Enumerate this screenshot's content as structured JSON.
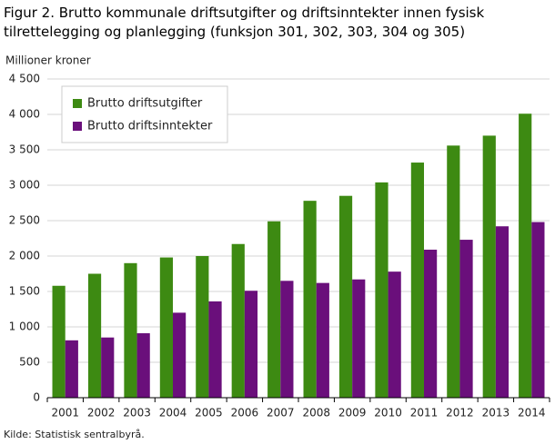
{
  "chart_data": {
    "type": "bar",
    "title": "Figur 2. Brutto kommunale driftsutgifter og driftsinntekter innen fysisk tilrettelegging og planlegging (funksjon 301, 302, 303, 304 og 305)",
    "y_label": "Millioner  kroner",
    "source": "Kilde: Statistisk sentralbyrå.",
    "categories": [
      "2001",
      "2002",
      "2003",
      "2004",
      "2005",
      "2006",
      "2007",
      "2008",
      "2009",
      "2010",
      "2011",
      "2012",
      "2013",
      "2014"
    ],
    "series": [
      {
        "name": "Brutto driftsutgifter",
        "color": "#3d8a12",
        "values": [
          1580,
          1750,
          1900,
          1980,
          2000,
          2170,
          2490,
          2780,
          2850,
          3040,
          3320,
          3560,
          3700,
          4010
        ]
      },
      {
        "name": "Brutto driftsinntekter",
        "color": "#6a0f7b",
        "values": [
          810,
          850,
          910,
          1200,
          1360,
          1510,
          1650,
          1620,
          1670,
          1780,
          2090,
          2230,
          2420,
          2480
        ]
      }
    ],
    "ylim": [
      0,
      4500
    ],
    "yticks": [
      0,
      500,
      {
        "value": 1000,
        "label": "1 000"
      },
      {
        "value": 1500,
        "label": "1 500"
      },
      {
        "value": 2000,
        "label": "2 000"
      },
      {
        "value": 2500,
        "label": "2 500"
      },
      {
        "value": 3000,
        "label": "3 000"
      },
      {
        "value": 3500,
        "label": "3 500"
      },
      {
        "value": 4000,
        "label": "4 000"
      },
      {
        "value": 4500,
        "label": "4 500"
      }
    ],
    "grid": true
  }
}
